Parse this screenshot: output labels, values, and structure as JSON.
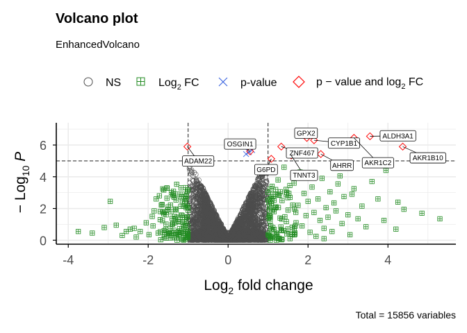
{
  "chart_data": {
    "type": "scatter",
    "title": "Volcano plot",
    "subtitle": "EnhancedVolcano",
    "caption": "Total = 15856 variables",
    "xlabel": {
      "main": "Log",
      "sub": "2",
      "tail": " fold change"
    },
    "ylabel": {
      "pre": "− Log",
      "sub": "10",
      "tail": " P"
    },
    "xlim": [
      -4.3,
      5.7
    ],
    "ylim": [
      -0.25,
      7.4
    ],
    "x_ticks": [
      -4,
      -2,
      0,
      2,
      4
    ],
    "x_tick_labels": [
      "-4",
      "-2",
      "0",
      "2",
      "4"
    ],
    "y_ticks": [
      0,
      2,
      4,
      6
    ],
    "y_tick_labels": [
      "0",
      "2",
      "4",
      "6"
    ],
    "grid": true,
    "legend_position": "top",
    "fc_cutoff": 1,
    "p_cutoff_log10": 5,
    "colors": {
      "ns": "#4d4d4d",
      "fc": "#228b22",
      "p": "#4169e1",
      "both": "#ff0000"
    },
    "legend": [
      {
        "key": "ns",
        "label": "NS"
      },
      {
        "key": "fc",
        "label": "Log",
        "sub": "2",
        "tail": " FC"
      },
      {
        "key": "p",
        "label": "p-value"
      },
      {
        "key": "both",
        "label": "p − value and log",
        "sub": "2",
        "tail": " FC"
      }
    ],
    "series_both": [
      {
        "name": "ADAM22",
        "x": -1.02,
        "y": 5.9,
        "lx": -0.75,
        "ly": 4.99
      },
      {
        "name": "OSGIN1",
        "x": 0.55,
        "y": 5.6,
        "lx": 0.3,
        "ly": 6.06
      },
      {
        "name": "G6PD",
        "x": 1.08,
        "y": 5.13,
        "lx": 0.95,
        "ly": 4.45
      },
      {
        "name": "ZNF467",
        "x": 1.33,
        "y": 5.9,
        "lx": 1.85,
        "ly": 5.5
      },
      {
        "name": "TNNT3",
        "x": 1.58,
        "y": 5.34,
        "lx": 1.9,
        "ly": 4.09
      },
      {
        "name": "GPX2",
        "x": 1.97,
        "y": 6.45,
        "lx": 1.95,
        "ly": 6.75
      },
      {
        "name": "CYP1B1",
        "x": 2.15,
        "y": 6.3,
        "lx": 2.9,
        "ly": 6.12
      },
      {
        "name": "AHRR",
        "x": 2.32,
        "y": 5.43,
        "lx": 2.85,
        "ly": 4.72
      },
      {
        "name": "AKR1C2",
        "x": 3.15,
        "y": 6.45,
        "lx": 3.75,
        "ly": 4.88
      },
      {
        "name": "ALDH3A1",
        "x": 3.55,
        "y": 6.55,
        "lx": 4.25,
        "ly": 6.58
      },
      {
        "name": "AKR1B10",
        "x": 4.37,
        "y": 5.9,
        "lx": 5.0,
        "ly": 5.19
      }
    ],
    "series_p": [
      {
        "x": 0.45,
        "y": 5.43
      },
      {
        "x": 0.52,
        "y": 5.55
      },
      {
        "x": 0.6,
        "y": 5.68
      }
    ],
    "series_fc": [
      {
        "x": -3.75,
        "y": 0.55
      },
      {
        "x": -3.4,
        "y": 0.45
      },
      {
        "x": -3.1,
        "y": 0.8
      },
      {
        "x": -2.95,
        "y": 2.45
      },
      {
        "x": -2.8,
        "y": 0.95
      },
      {
        "x": -2.65,
        "y": 0.3
      },
      {
        "x": -2.55,
        "y": 0.55
      },
      {
        "x": -2.45,
        "y": 0.7
      },
      {
        "x": -2.35,
        "y": 0.75
      },
      {
        "x": -2.3,
        "y": 0.2
      },
      {
        "x": -2.2,
        "y": 0.55
      },
      {
        "x": -2.05,
        "y": 1.1
      },
      {
        "x": -1.98,
        "y": 0.35
      },
      {
        "x": -1.88,
        "y": 0.9
      },
      {
        "x": -1.85,
        "y": 1.85
      },
      {
        "x": -1.8,
        "y": 2.6
      },
      {
        "x": -1.75,
        "y": 0.45
      },
      {
        "x": -1.7,
        "y": 1.3
      },
      {
        "x": -1.65,
        "y": 2.25
      },
      {
        "x": -1.6,
        "y": 0.6
      },
      {
        "x": -1.55,
        "y": 1.6
      },
      {
        "x": -1.5,
        "y": 2.1
      },
      {
        "x": -1.45,
        "y": 0.3
      },
      {
        "x": -1.4,
        "y": 1.0
      },
      {
        "x": -1.35,
        "y": 2.7
      },
      {
        "x": -1.3,
        "y": 1.9
      },
      {
        "x": -1.25,
        "y": 0.5
      },
      {
        "x": -1.2,
        "y": 1.45
      },
      {
        "x": -1.15,
        "y": 2.9
      },
      {
        "x": -1.12,
        "y": 0.85
      },
      {
        "x": -1.08,
        "y": 2.3
      },
      {
        "x": -1.05,
        "y": 1.2
      },
      {
        "x": -1.02,
        "y": 3.1
      },
      {
        "x": -1.01,
        "y": 0.25
      },
      {
        "x": -1.3,
        "y": 0.15
      },
      {
        "x": -1.6,
        "y": 0.2
      },
      {
        "x": -1.9,
        "y": 1.5
      },
      {
        "x": -1.72,
        "y": 2.8
      },
      {
        "x": -1.42,
        "y": 3.0
      },
      {
        "x": -1.18,
        "y": 3.3
      },
      {
        "x": 1.02,
        "y": 0.3
      },
      {
        "x": 1.05,
        "y": 1.2
      },
      {
        "x": 1.08,
        "y": 2.3
      },
      {
        "x": 1.1,
        "y": 3.4
      },
      {
        "x": 1.12,
        "y": 0.8
      },
      {
        "x": 1.15,
        "y": 1.8
      },
      {
        "x": 1.18,
        "y": 2.9
      },
      {
        "x": 1.2,
        "y": 0.45
      },
      {
        "x": 1.25,
        "y": 3.8
      },
      {
        "x": 1.3,
        "y": 1.4
      },
      {
        "x": 1.35,
        "y": 2.5
      },
      {
        "x": 1.4,
        "y": 0.6
      },
      {
        "x": 1.45,
        "y": 3.2
      },
      {
        "x": 1.5,
        "y": 1.9
      },
      {
        "x": 1.55,
        "y": 2.7
      },
      {
        "x": 1.6,
        "y": 0.35
      },
      {
        "x": 1.65,
        "y": 3.6
      },
      {
        "x": 1.7,
        "y": 1.1
      },
      {
        "x": 1.75,
        "y": 2.2
      },
      {
        "x": 1.8,
        "y": 4.3
      },
      {
        "x": 1.85,
        "y": 0.9
      },
      {
        "x": 1.9,
        "y": 2.95
      },
      {
        "x": 1.95,
        "y": 1.55
      },
      {
        "x": 2.0,
        "y": 2.45
      },
      {
        "x": 2.05,
        "y": 0.5
      },
      {
        "x": 2.1,
        "y": 3.35
      },
      {
        "x": 2.15,
        "y": 1.75
      },
      {
        "x": 2.2,
        "y": 0.25
      },
      {
        "x": 2.25,
        "y": 2.6
      },
      {
        "x": 2.3,
        "y": 1.25
      },
      {
        "x": 2.35,
        "y": 3.9
      },
      {
        "x": 2.4,
        "y": 0.75
      },
      {
        "x": 2.45,
        "y": 2.05
      },
      {
        "x": 2.5,
        "y": 1.45
      },
      {
        "x": 2.55,
        "y": 3.05
      },
      {
        "x": 2.6,
        "y": 0.55
      },
      {
        "x": 2.65,
        "y": 2.35
      },
      {
        "x": 2.7,
        "y": 1.85
      },
      {
        "x": 2.75,
        "y": 3.55
      },
      {
        "x": 2.85,
        "y": 1.05
      },
      {
        "x": 2.9,
        "y": 2.75
      },
      {
        "x": 3.0,
        "y": 1.6
      },
      {
        "x": 3.05,
        "y": 0.35
      },
      {
        "x": 3.1,
        "y": 2.9
      },
      {
        "x": 3.15,
        "y": 3.25
      },
      {
        "x": 3.25,
        "y": 1.35
      },
      {
        "x": 3.35,
        "y": 2.15
      },
      {
        "x": 3.45,
        "y": 0.85
      },
      {
        "x": 3.6,
        "y": 3.7
      },
      {
        "x": 3.75,
        "y": 2.6
      },
      {
        "x": 3.9,
        "y": 1.25
      },
      {
        "x": 3.95,
        "y": 4.4
      },
      {
        "x": 4.2,
        "y": 0.7
      },
      {
        "x": 4.25,
        "y": 2.4
      },
      {
        "x": 4.4,
        "y": 1.95
      },
      {
        "x": 4.85,
        "y": 1.7
      },
      {
        "x": 5.3,
        "y": 1.35
      },
      {
        "x": 1.95,
        "y": 4.15
      },
      {
        "x": 2.8,
        "y": 4.05
      },
      {
        "x": 1.4,
        "y": 4.6
      },
      {
        "x": 1.55,
        "y": 0.1
      },
      {
        "x": 2.4,
        "y": 0.1
      }
    ]
  }
}
